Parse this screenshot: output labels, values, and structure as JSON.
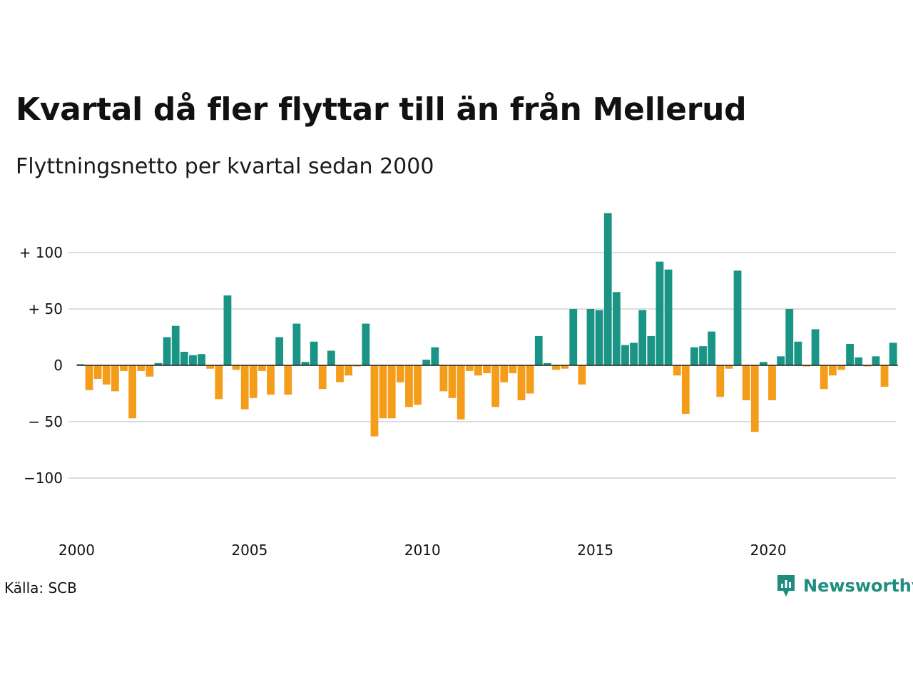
{
  "title": "Kvartal då fler flyttar till än från Mellerud",
  "subtitle": "Flyttningsnetto per kvartal sedan 2000",
  "source": "Källa: SCB",
  "brand": {
    "name": "Newsworthy",
    "icon": "newsworthy-logo-icon"
  },
  "colors": {
    "positive": "#1a9484",
    "negative": "#f49d1b",
    "grid": "#dddddd",
    "brand": "#1e8c7f"
  },
  "chart_data": {
    "type": "bar",
    "x_start": "2000 Q1",
    "period": "quarter",
    "x_ticks": [
      "2000",
      "2005",
      "2010",
      "2015",
      "2020"
    ],
    "y_ticks": [
      "+ 100",
      "+  50",
      "0",
      "− 50",
      "−100"
    ],
    "y_tick_values": [
      100,
      50,
      0,
      -50,
      -100
    ],
    "ylim": [
      -150,
      135
    ],
    "grid": true,
    "values": [
      1,
      -22,
      -12,
      -17,
      -23,
      -5,
      -47,
      -5,
      -10,
      2,
      25,
      35,
      12,
      9,
      10,
      -3,
      -30,
      62,
      -4,
      -39,
      -29,
      -5,
      -26,
      25,
      -26,
      37,
      3,
      21,
      -21,
      13,
      -15,
      -9,
      -1,
      37,
      -63,
      -47,
      -47,
      -15,
      -37,
      -35,
      5,
      16,
      -23,
      -29,
      -48,
      -5,
      -9,
      -7,
      -37,
      -15,
      -7,
      -31,
      -25,
      26,
      2,
      -4,
      -3,
      50,
      -17,
      50,
      49,
      135,
      65,
      18,
      20,
      49,
      26,
      92,
      85,
      -9,
      -43,
      16,
      17,
      30,
      -28,
      -3,
      84,
      -31,
      -59,
      3,
      -31,
      8,
      50,
      21,
      -1,
      32,
      -21,
      -9,
      -4,
      19,
      7,
      -1,
      8,
      -19,
      20
    ]
  }
}
